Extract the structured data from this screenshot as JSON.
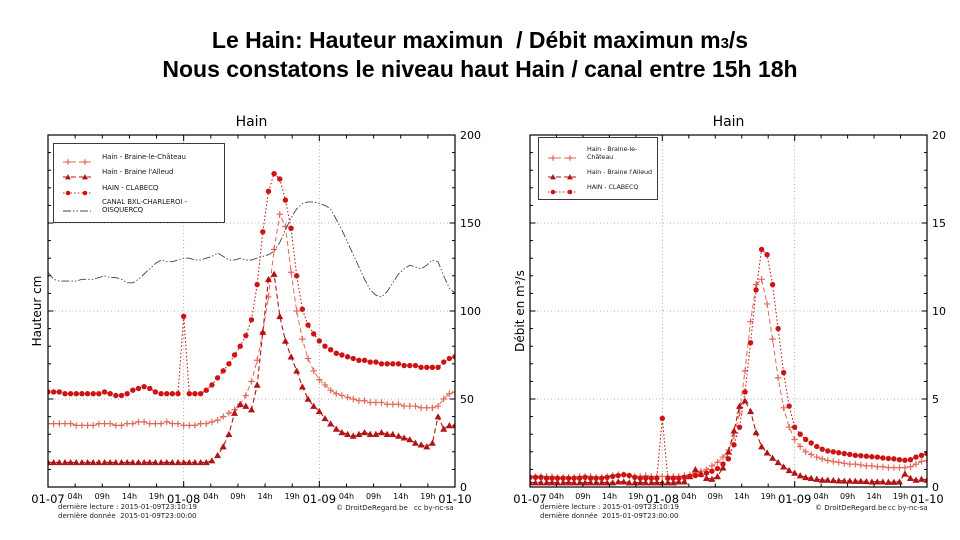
{
  "title": {
    "line1_pre": "Le Hain: Hauteur maximun  / Débit maximun m",
    "line1_sub": "3",
    "line1_post": "/s",
    "line2": "Nous constatons le niveau haut Hain / canal entre 15h 18h"
  },
  "footer": {
    "lecture": "dernière lecture : 2015-01-09T23:10:19",
    "donnee": "dernière donnée  2015-01-09T23:00:00",
    "copyright": "© DroitDeRegard.be",
    "license": "cc by-nc-sa"
  },
  "chart_data": [
    {
      "type": "line",
      "id": "hauteur",
      "title": "Hain",
      "ylabel": "Hauteur cm",
      "ylim": [
        0,
        200
      ],
      "yticks": [
        0,
        50,
        100,
        150,
        200
      ],
      "yminor": 10,
      "grid_y": [
        50,
        100,
        150
      ],
      "grid_x_hours": [
        24,
        48
      ],
      "x_day_labels": [
        "01-07",
        "01-08",
        "01-09",
        "01-10"
      ],
      "x_hour_labels": [
        "04h",
        "09h",
        "14h",
        "19h"
      ],
      "xlabel": "",
      "legend_position": "upper-left",
      "series": [
        {
          "id": "braine-le-chateau",
          "name": "Hain - Braine-le-Château",
          "color": "#e0695a",
          "marker": "plus",
          "dash": "5,3",
          "width": 1.0,
          "values": [
            36,
            36,
            36,
            36,
            36,
            35,
            35,
            35,
            35,
            36,
            36,
            36,
            35,
            35,
            36,
            36,
            37,
            37,
            36,
            36,
            36,
            37,
            36,
            36,
            35,
            35,
            35,
            36,
            36,
            37,
            38,
            40,
            42,
            44,
            47,
            52,
            60,
            72,
            88,
            108,
            135,
            155,
            148,
            122,
            100,
            84,
            73,
            66,
            61,
            58,
            55,
            53,
            52,
            51,
            50,
            49,
            49,
            48,
            48,
            48,
            47,
            47,
            47,
            46,
            46,
            46,
            45,
            45,
            45,
            46,
            50,
            53,
            54
          ]
        },
        {
          "id": "braine-l-alleud",
          "name": "Hain - Braine l'Alleud",
          "color": "#b01414",
          "marker": "triangle",
          "dash": "5,3",
          "width": 1.1,
          "values": [
            14,
            14,
            14,
            14,
            14,
            14,
            14,
            14,
            14,
            14,
            14,
            14,
            14,
            14,
            14,
            14,
            14,
            14,
            14,
            14,
            14,
            14,
            14,
            14,
            14,
            14,
            14,
            14,
            14,
            15,
            18,
            23,
            30,
            42,
            47,
            46,
            44,
            58,
            88,
            118,
            121,
            97,
            83,
            74,
            66,
            57,
            50,
            46,
            43,
            39,
            36,
            33,
            31,
            30,
            29,
            30,
            31,
            30,
            30,
            31,
            30,
            30,
            29,
            28,
            27,
            25,
            24,
            23,
            25,
            40,
            33,
            35,
            35
          ]
        },
        {
          "id": "clabecq",
          "name": "HAIN - CLABECQ",
          "color": "#cc1414",
          "marker": "circle",
          "dash": "1.5,2.2",
          "width": 1.1,
          "values": [
            54,
            54,
            54,
            53,
            53,
            53,
            53,
            53,
            53,
            53,
            54,
            53,
            52,
            52,
            53,
            55,
            56,
            57,
            56,
            54,
            53,
            53,
            53,
            53,
            97,
            53,
            53,
            53,
            55,
            58,
            62,
            66,
            70,
            75,
            80,
            86,
            95,
            115,
            145,
            168,
            178,
            175,
            163,
            147,
            120,
            101,
            92,
            87,
            83,
            80,
            78,
            76,
            75,
            74,
            73,
            72,
            72,
            71,
            71,
            70,
            70,
            70,
            70,
            69,
            69,
            69,
            68,
            68,
            68,
            68,
            71,
            73,
            74
          ]
        },
        {
          "id": "canal",
          "name": "CANAL BXL-CHARLEROI - OISQUERCQ",
          "color": "#444444",
          "marker": "none",
          "dash": "8,2,1.5,2,1.5,2",
          "width": 0.9,
          "values": [
            122,
            118,
            117,
            117,
            117,
            117,
            118,
            118,
            118,
            119,
            120,
            119,
            119,
            118,
            116,
            116,
            118,
            121,
            124,
            127,
            129,
            128,
            128,
            129,
            130,
            130,
            129,
            129,
            130,
            131,
            133,
            131,
            129,
            129,
            130,
            129,
            129,
            130,
            131,
            132,
            134,
            139,
            146,
            153,
            158,
            161,
            162,
            162,
            161,
            160,
            158,
            152,
            146,
            139,
            132,
            125,
            118,
            112,
            109,
            108,
            111,
            116,
            121,
            124,
            126,
            125,
            124,
            126,
            129,
            128,
            120,
            113,
            110
          ]
        }
      ]
    },
    {
      "type": "line",
      "id": "debit",
      "title": "Hain",
      "ylabel": "Débit en m³/s",
      "ylim": [
        0,
        20
      ],
      "yticks": [
        0,
        5,
        10,
        15,
        20
      ],
      "yminor": 1,
      "grid_y": [
        5,
        10,
        15
      ],
      "grid_x_hours": [
        24,
        48
      ],
      "x_day_labels": [
        "01-07",
        "01-08",
        "01-09",
        "01-10"
      ],
      "x_hour_labels": [
        "04h",
        "09h",
        "14h",
        "19h"
      ],
      "xlabel": "",
      "legend_position": "upper-left",
      "series": [
        {
          "id": "braine-le-chateau",
          "name": "Hain - Braine-le-Château",
          "color": "#e0695a",
          "marker": "plus",
          "dash": "5,3",
          "width": 1.0,
          "values": [
            0.6,
            0.6,
            0.6,
            0.6,
            0.6,
            0.55,
            0.55,
            0.55,
            0.55,
            0.6,
            0.6,
            0.6,
            0.55,
            0.55,
            0.6,
            0.65,
            0.7,
            0.7,
            0.65,
            0.6,
            0.6,
            0.65,
            0.6,
            0.6,
            0.6,
            0.6,
            0.6,
            0.6,
            0.65,
            0.7,
            0.8,
            0.9,
            1.0,
            1.2,
            1.4,
            1.7,
            2.1,
            2.9,
            4.2,
            6.6,
            9.4,
            11.5,
            11.8,
            10.4,
            8.4,
            6.2,
            4.5,
            3.4,
            2.7,
            2.3,
            2.0,
            1.85,
            1.7,
            1.6,
            1.5,
            1.45,
            1.4,
            1.35,
            1.3,
            1.3,
            1.25,
            1.2,
            1.2,
            1.15,
            1.15,
            1.1,
            1.1,
            1.1,
            1.1,
            1.15,
            1.3,
            1.45,
            1.5
          ]
        },
        {
          "id": "braine-l-alleud",
          "name": "Hain - Braine l'Alleud",
          "color": "#b01414",
          "marker": "triangle",
          "dash": "5,3",
          "width": 1.1,
          "values": [
            0.25,
            0.25,
            0.25,
            0.25,
            0.25,
            0.25,
            0.25,
            0.25,
            0.25,
            0.25,
            0.25,
            0.25,
            0.25,
            0.25,
            0.25,
            0.25,
            0.3,
            0.3,
            0.25,
            0.25,
            0.25,
            0.25,
            0.25,
            0.25,
            0.25,
            0.25,
            0.25,
            0.3,
            0.3,
            0.6,
            1.0,
            0.75,
            0.5,
            0.45,
            0.6,
            1.1,
            2.0,
            3.2,
            4.6,
            4.9,
            4.3,
            3.1,
            2.3,
            1.95,
            1.65,
            1.4,
            1.15,
            0.95,
            0.8,
            0.65,
            0.55,
            0.5,
            0.45,
            0.4,
            0.4,
            0.38,
            0.36,
            0.35,
            0.35,
            0.34,
            0.33,
            0.32,
            0.3,
            0.3,
            0.3,
            0.28,
            0.28,
            0.3,
            0.75,
            0.5,
            0.4,
            0.45,
            0.4
          ]
        },
        {
          "id": "clabecq",
          "name": "HAIN - CLABECQ",
          "color": "#cc1414",
          "marker": "circle",
          "dash": "1.5,2.2",
          "width": 1.1,
          "values": [
            0.55,
            0.55,
            0.55,
            0.5,
            0.5,
            0.5,
            0.5,
            0.5,
            0.5,
            0.5,
            0.55,
            0.5,
            0.5,
            0.5,
            0.55,
            0.6,
            0.65,
            0.7,
            0.65,
            0.55,
            0.5,
            0.5,
            0.5,
            0.5,
            3.9,
            0.5,
            0.5,
            0.5,
            0.55,
            0.6,
            0.65,
            0.7,
            0.8,
            0.9,
            1.05,
            1.3,
            1.6,
            2.4,
            3.4,
            5.4,
            8.2,
            11.2,
            13.5,
            13.2,
            11.5,
            9.0,
            6.5,
            4.6,
            3.4,
            3.0,
            2.7,
            2.5,
            2.3,
            2.15,
            2.05,
            2.0,
            1.95,
            1.9,
            1.85,
            1.8,
            1.78,
            1.75,
            1.72,
            1.7,
            1.65,
            1.62,
            1.6,
            1.55,
            1.52,
            1.55,
            1.7,
            1.8,
            1.9
          ]
        }
      ]
    }
  ]
}
